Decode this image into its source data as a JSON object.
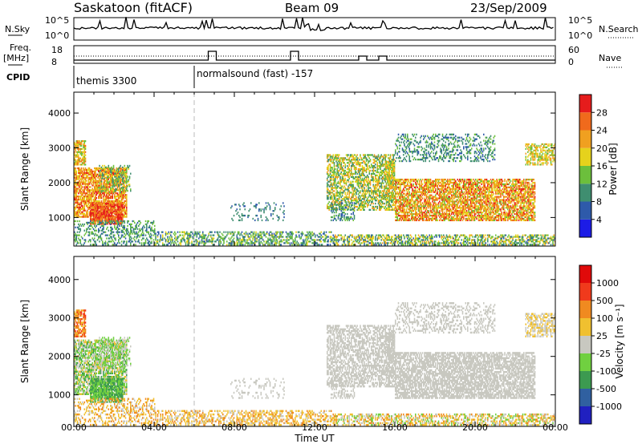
{
  "header": {
    "station": "Saskatoon (fitACF)",
    "beam": "Beam 09",
    "date": "23/Sep/2009"
  },
  "chart_data": [
    {
      "type": "line",
      "panel": "noise",
      "left_label": "N.Sky",
      "right_label": "N.Search",
      "left_ticks": [
        "10^5",
        "10^0"
      ],
      "right_ticks": [
        "10^5",
        "10^0"
      ]
    },
    {
      "type": "line",
      "panel": "frequency",
      "left_label_line1": "Freq.",
      "left_label_line2": "[MHz]",
      "right_label": "Nave",
      "left_ticks": [
        "18",
        "8"
      ],
      "right_ticks": [
        "60",
        "0"
      ]
    },
    {
      "type": "table",
      "panel": "cpid",
      "label": "CPID",
      "segments": [
        {
          "start_h": 0,
          "text": "themis 3300"
        },
        {
          "start_h": 6,
          "text": "normalsound (fast) -157"
        }
      ]
    },
    {
      "type": "heatmap",
      "panel": "power",
      "ylabel": "Slant Range [km]",
      "y_ticks": [
        1000,
        2000,
        3000,
        4000
      ],
      "ylim": [
        180,
        4600
      ],
      "colorbar_label": "Power [dB]",
      "colorbar_ticks": [
        "4",
        "8",
        "12",
        "16",
        "20",
        "24",
        "28"
      ],
      "colors": [
        "#1c1ce6",
        "#2e5aaa",
        "#3f8e70",
        "#6cbf3c",
        "#e6d21c",
        "#f0a020",
        "#f06a1c",
        "#e61c1c"
      ]
    },
    {
      "type": "heatmap",
      "panel": "velocity",
      "ylabel": "Slant Range [km]",
      "y_ticks": [
        1000,
        2000,
        3000,
        4000
      ],
      "ylim": [
        180,
        4600
      ],
      "colorbar_label": "Velocity [m s⁻¹]",
      "colorbar_ticks": [
        "1000",
        "500",
        "100",
        "25",
        "-25",
        "-100",
        "-500",
        "-1000"
      ],
      "colors": [
        "#2020c0",
        "#3060a0",
        "#3c9a50",
        "#70d040",
        "#c8c8c0",
        "#f0c030",
        "#f08a20",
        "#f03a1c",
        "#e00a0a"
      ]
    }
  ],
  "x_axis": {
    "xlabel": "Time UT",
    "ticks": [
      "00:00",
      "04:00",
      "08:00",
      "12:00",
      "16:00",
      "20:00",
      "00:00"
    ],
    "range_h": [
      0,
      24
    ]
  }
}
